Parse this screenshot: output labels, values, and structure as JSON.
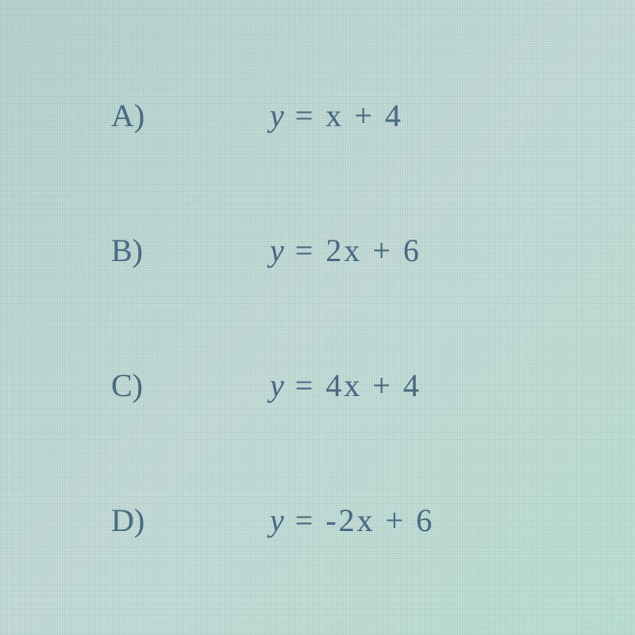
{
  "background_color": "#c2ddd8",
  "text_color": "#4a6b85",
  "font_family": "Georgia, Times New Roman, serif",
  "label_fontsize": 40,
  "equation_fontsize": 40,
  "options": [
    {
      "label": "A)",
      "equation_var": "y",
      "equation_rest": " = x + 4"
    },
    {
      "label": "B)",
      "equation_var": "y",
      "equation_rest": " = 2x + 6"
    },
    {
      "label": "C)",
      "equation_var": "y",
      "equation_rest": " = 4x + 4"
    },
    {
      "label": "D)",
      "equation_var": "y",
      "equation_rest": " = -2x + 6"
    }
  ]
}
